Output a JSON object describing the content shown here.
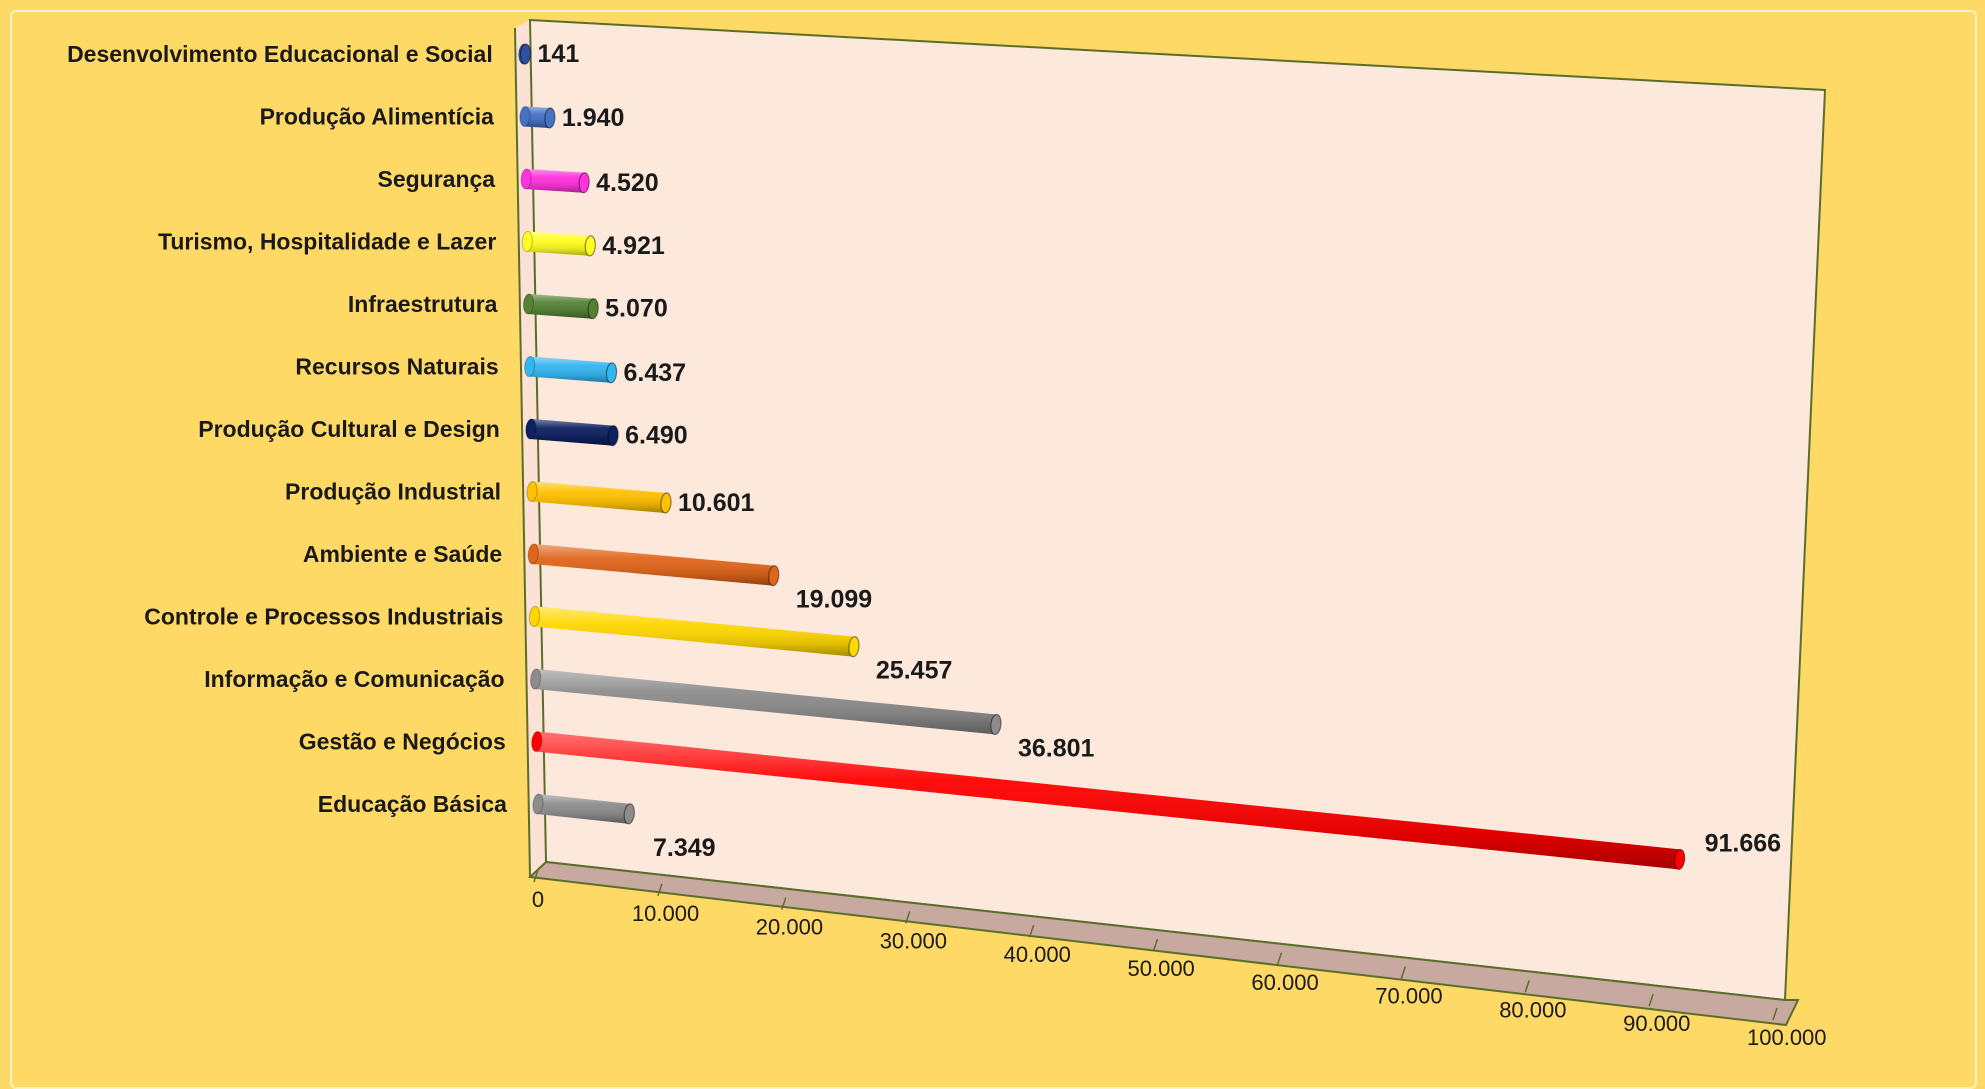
{
  "chart_data": {
    "type": "bar",
    "orientation": "horizontal",
    "style": "3d-cylinder",
    "categories": [
      "Desenvolvimento Educacional e Social",
      "Produção Alimentícia",
      "Segurança",
      "Turismo, Hospitalidade e Lazer",
      "Infraestrutura",
      "Recursos Naturais",
      "Produção Cultural e Design",
      "Produção Industrial",
      "Ambiente e Saúde",
      "Controle e Processos Industriais",
      "Informação e Comunicação",
      "Gestão e Negócios",
      "Educação Básica"
    ],
    "values": [
      141,
      1940,
      4520,
      4921,
      5070,
      6437,
      6490,
      10601,
      19099,
      25457,
      36801,
      91666,
      7349
    ],
    "value_labels": [
      "141",
      "1.940",
      "4.520",
      "4.921",
      "5.070",
      "6.437",
      "6.490",
      "10.601",
      "19.099",
      "25.457",
      "36.801",
      "91.666",
      "7.349"
    ],
    "colors": [
      "#2f4f9f",
      "#4472c4",
      "#ff33dd",
      "#ffff22",
      "#548235",
      "#33b5f0",
      "#0d2060",
      "#ffc000",
      "#e0651a",
      "#ffd700",
      "#8c8c8c",
      "#ff0000",
      "#8c8c8c"
    ],
    "xlim": [
      0,
      100000
    ],
    "xticks": [
      0,
      10000,
      20000,
      30000,
      40000,
      50000,
      60000,
      70000,
      80000,
      90000,
      100000
    ],
    "xtick_labels": [
      "0",
      "10.000",
      "20.000",
      "30.000",
      "40.000",
      "50.000",
      "60.000",
      "70.000",
      "80.000",
      "90.000",
      "100.000"
    ],
    "title": "",
    "xlabel": "",
    "ylabel": "",
    "grid": false,
    "legend": "none",
    "background": "#ffd966",
    "plot_background": "#fde8dc"
  }
}
